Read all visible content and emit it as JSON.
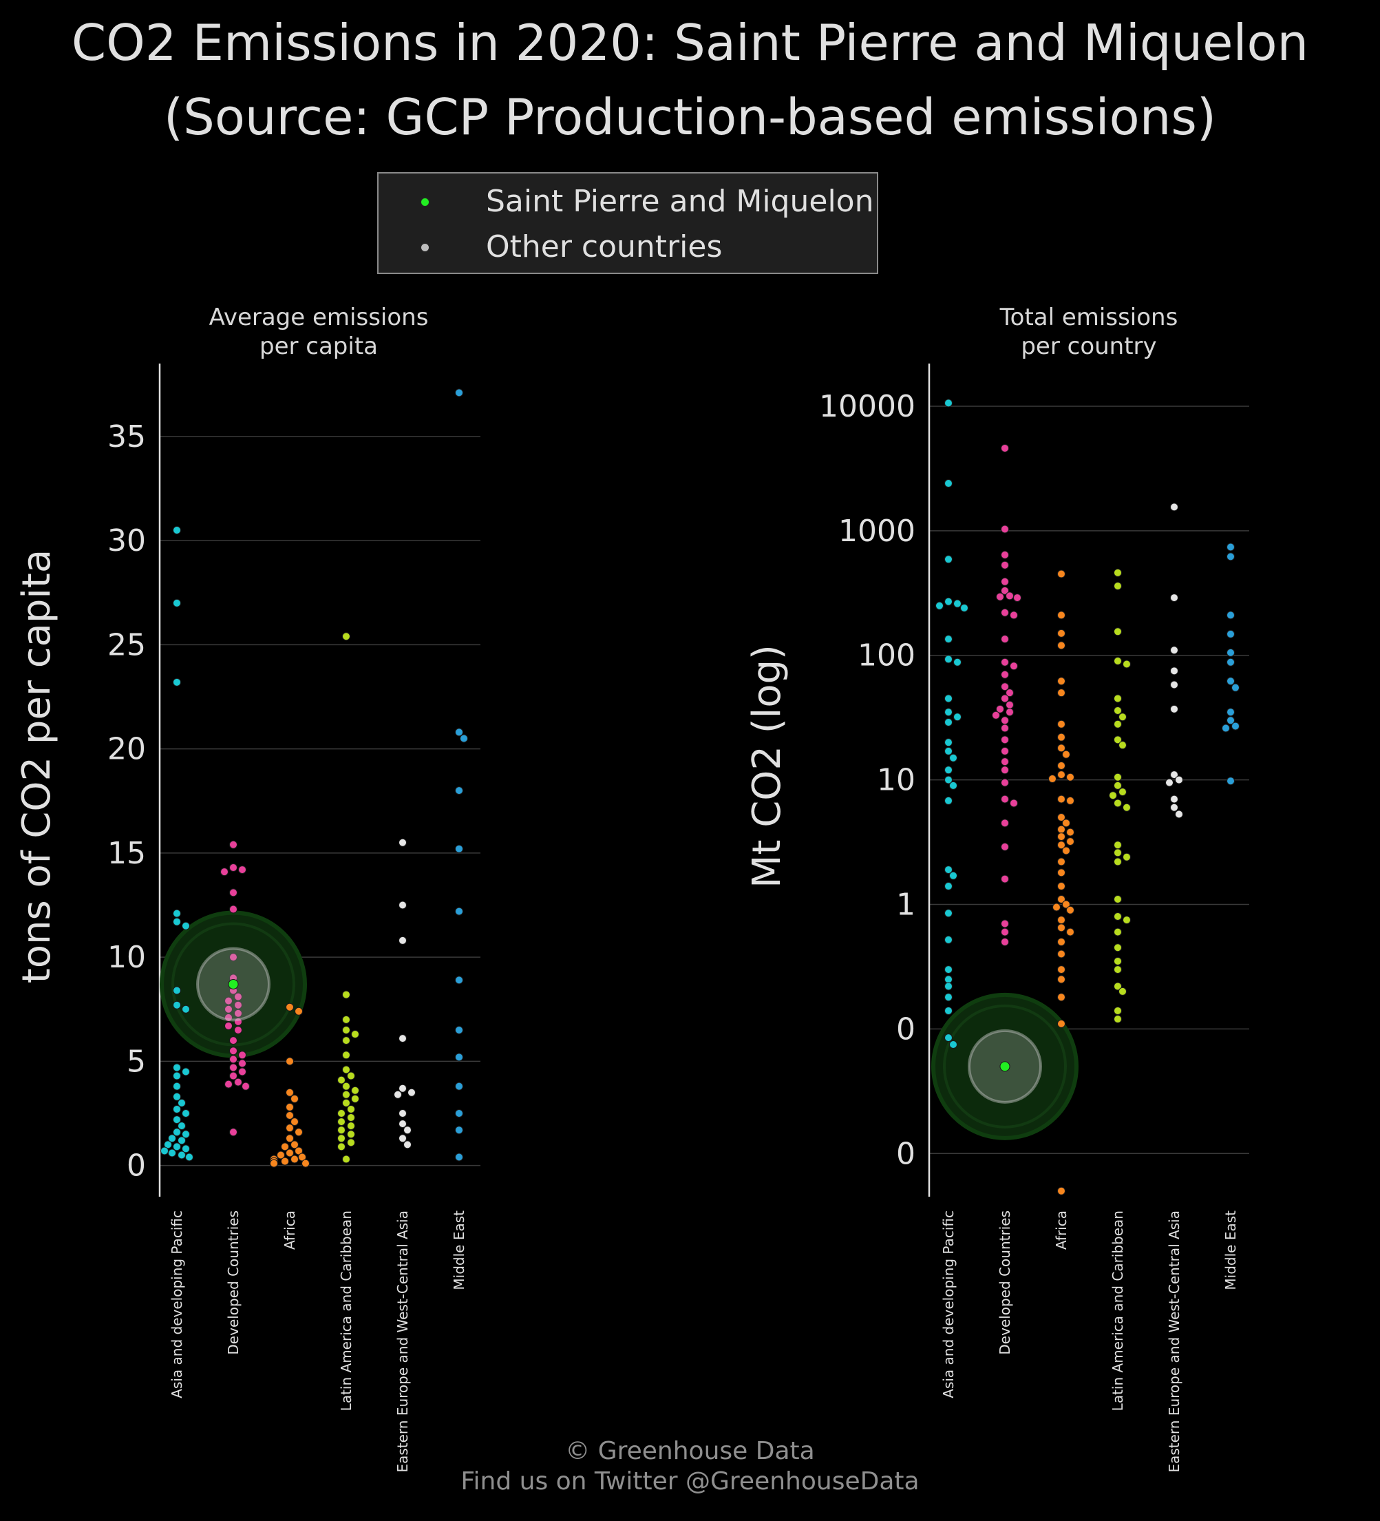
{
  "title": "CO2 Emissions in 2020: Saint Pierre and Miquelon\n(Source: GCP Production-based emissions)",
  "legend": {
    "highlight_label": "Saint Pierre and Miquelon",
    "other_label": "Other countries",
    "highlight_color": "#22ee22",
    "other_color": "#bdbdbd"
  },
  "credit": {
    "line1": "© Greenhouse Data",
    "line2": "Find us on Twitter @GreenhouseData"
  },
  "colors": {
    "Asia and developing Pacific": "#19c8d2",
    "Developed Countries": "#e8409a",
    "Africa": "#f7861e",
    "Latin America and Caribbean": "#b8dc1e",
    "Eastern Europe and West-Central Asia": "#e6e6e6",
    "Middle East": "#2a9fd8"
  },
  "chart_data": [
    {
      "type": "scatter",
      "title": "Average emissions\nper capita",
      "ylabel": "tons of CO2 per capita",
      "ylim": [
        -1.5,
        38.5
      ],
      "yticks": [
        0,
        5,
        10,
        15,
        20,
        25,
        30,
        35
      ],
      "ytick_labels": [
        "0",
        "5",
        "10",
        "15",
        "20",
        "25",
        "30",
        "35"
      ],
      "categories": [
        "Asia and developing Pacific",
        "Developed Countries",
        "Africa",
        "Latin America and Caribbean",
        "Eastern Europe and West-Central Asia",
        "Middle East"
      ],
      "highlight": {
        "name": "Saint Pierre and Miquelon",
        "category": "Developed Countries",
        "value": 8.7
      },
      "series": [
        {
          "category": "Asia and developing Pacific",
          "values": [
            30.5,
            27.0,
            23.2,
            12.1,
            11.7,
            11.5,
            8.4,
            7.7,
            7.5,
            4.7,
            4.5,
            4.3,
            3.8,
            3.3,
            3.0,
            2.7,
            2.5,
            2.2,
            1.9,
            1.6,
            1.5,
            1.3,
            1.2,
            1.0,
            0.9,
            0.8,
            0.7,
            0.6,
            0.5,
            0.4
          ]
        },
        {
          "category": "Developed Countries",
          "values": [
            15.4,
            14.3,
            14.2,
            14.1,
            13.1,
            12.3,
            10.0,
            9.0,
            8.4,
            8.1,
            7.9,
            7.7,
            7.5,
            7.3,
            7.1,
            6.9,
            6.7,
            6.5,
            6.0,
            5.5,
            5.3,
            5.1,
            4.9,
            4.7,
            4.5,
            4.3,
            4.0,
            3.9,
            3.8,
            1.6
          ]
        },
        {
          "category": "Africa",
          "values": [
            7.6,
            7.4,
            5.0,
            3.5,
            3.2,
            2.8,
            2.4,
            2.1,
            1.8,
            1.6,
            1.3,
            1.0,
            0.9,
            0.7,
            0.6,
            0.5,
            0.4,
            0.3,
            0.3,
            0.2,
            0.2,
            0.1,
            0.1,
            0.1
          ]
        },
        {
          "category": "Latin America and Caribbean",
          "values": [
            25.4,
            8.2,
            7.0,
            6.5,
            6.3,
            6.0,
            5.3,
            4.6,
            4.3,
            4.1,
            3.8,
            3.6,
            3.4,
            3.2,
            3.0,
            2.7,
            2.5,
            2.3,
            2.1,
            1.9,
            1.7,
            1.5,
            1.3,
            1.1,
            0.9,
            0.3
          ]
        },
        {
          "category": "Eastern Europe and West-Central Asia",
          "values": [
            15.5,
            12.5,
            10.8,
            6.1,
            3.7,
            3.5,
            3.4,
            2.5,
            2.0,
            1.7,
            1.3,
            1.0
          ]
        },
        {
          "category": "Middle East",
          "values": [
            37.1,
            20.8,
            20.5,
            18.0,
            15.2,
            12.2,
            8.9,
            6.5,
            5.2,
            3.8,
            2.5,
            1.7,
            0.4
          ]
        }
      ]
    },
    {
      "type": "scatter",
      "title": "Total emissions\nper country",
      "ylabel": "Mt CO2 (log)",
      "scale": "log",
      "ylim": [
        0.0045,
        22000
      ],
      "yticks": [
        0.01,
        0.1,
        1,
        10,
        100,
        1000,
        10000
      ],
      "ytick_labels": [
        "0",
        "0",
        "1",
        "10",
        "100",
        "1000",
        "10000"
      ],
      "categories": [
        "Asia and developing Pacific",
        "Developed Countries",
        "Africa",
        "Latin America and Caribbean",
        "Eastern Europe and West-Central Asia",
        "Middle East"
      ],
      "highlight": {
        "name": "Saint Pierre and Miquelon",
        "category": "Developed Countries",
        "value": 0.05
      },
      "series": [
        {
          "category": "Asia and developing Pacific",
          "values": [
            10600,
            2400,
            590,
            270,
            260,
            250,
            240,
            135,
            93,
            88,
            45,
            35,
            32,
            29,
            20,
            17,
            15,
            12,
            10,
            9,
            6.8,
            1.9,
            1.7,
            1.4,
            0.85,
            0.52,
            0.3,
            0.25,
            0.22,
            0.18,
            0.14,
            0.085,
            0.075
          ]
        },
        {
          "category": "Developed Countries",
          "values": [
            4600,
            1030,
            640,
            530,
            390,
            330,
            300,
            295,
            290,
            220,
            210,
            135,
            88,
            82,
            70,
            56,
            50,
            45,
            40,
            37,
            35,
            33,
            30,
            26,
            21,
            17,
            14,
            12,
            9.5,
            7,
            6.5,
            4.5,
            2.9,
            1.6,
            0.7,
            0.6,
            0.5
          ]
        },
        {
          "category": "Africa",
          "values": [
            450,
            210,
            150,
            120,
            62,
            50,
            28,
            22,
            18,
            16,
            13,
            11,
            10.5,
            10.2,
            7,
            6.8,
            5,
            4.5,
            4,
            3.8,
            3.5,
            3.2,
            3,
            2.7,
            2.2,
            1.8,
            1.4,
            1.1,
            1.0,
            0.95,
            0.9,
            0.75,
            0.65,
            0.6,
            0.5,
            0.4,
            0.3,
            0.25,
            0.18,
            0.11,
            0.005
          ]
        },
        {
          "category": "Latin America and Caribbean",
          "values": [
            460,
            360,
            155,
            90,
            85,
            45,
            36,
            32,
            28,
            21,
            19,
            10.5,
            9,
            8,
            7.5,
            6.5,
            6,
            3,
            2.6,
            2.4,
            2.2,
            1.1,
            0.8,
            0.75,
            0.6,
            0.45,
            0.35,
            0.3,
            0.22,
            0.2,
            0.14,
            0.12
          ]
        },
        {
          "category": "Eastern Europe and West-Central Asia",
          "values": [
            1550,
            290,
            110,
            75,
            58,
            37,
            11,
            10,
            9.5,
            7,
            6,
            5.3
          ]
        },
        {
          "category": "Middle East",
          "values": [
            740,
            620,
            210,
            148,
            105,
            88,
            62,
            55,
            35,
            30,
            27,
            26,
            9.8
          ]
        }
      ]
    }
  ]
}
